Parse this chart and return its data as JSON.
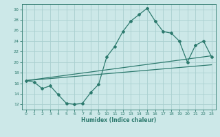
{
  "xlabel": "Humidex (Indice chaleur)",
  "xlim": [
    -0.5,
    23.5
  ],
  "ylim": [
    11,
    31
  ],
  "yticks": [
    12,
    14,
    16,
    18,
    20,
    22,
    24,
    26,
    28,
    30
  ],
  "xticks": [
    0,
    1,
    2,
    3,
    4,
    5,
    6,
    7,
    8,
    9,
    10,
    11,
    12,
    13,
    14,
    15,
    16,
    17,
    18,
    19,
    20,
    21,
    22,
    23
  ],
  "bg_color": "#cce8e8",
  "grid_color": "#aad0d0",
  "line_color": "#2d7a6e",
  "line1_x": [
    0,
    1,
    2,
    3,
    4,
    5,
    6,
    7,
    8,
    9,
    10,
    11,
    12,
    13,
    14,
    15,
    16,
    17,
    18,
    19,
    20,
    21,
    22,
    23
  ],
  "line1_y": [
    16.5,
    16.2,
    15.0,
    15.5,
    13.8,
    12.2,
    12.0,
    12.2,
    14.2,
    15.8,
    21.0,
    23.0,
    25.8,
    27.8,
    29.0,
    30.2,
    27.8,
    25.8,
    25.5,
    24.0,
    20.0,
    23.2,
    24.0,
    21.0
  ],
  "line2_x": [
    0,
    23
  ],
  "line2_y": [
    16.5,
    19.5
  ],
  "line3_x": [
    0,
    23
  ],
  "line3_y": [
    16.5,
    21.2
  ]
}
